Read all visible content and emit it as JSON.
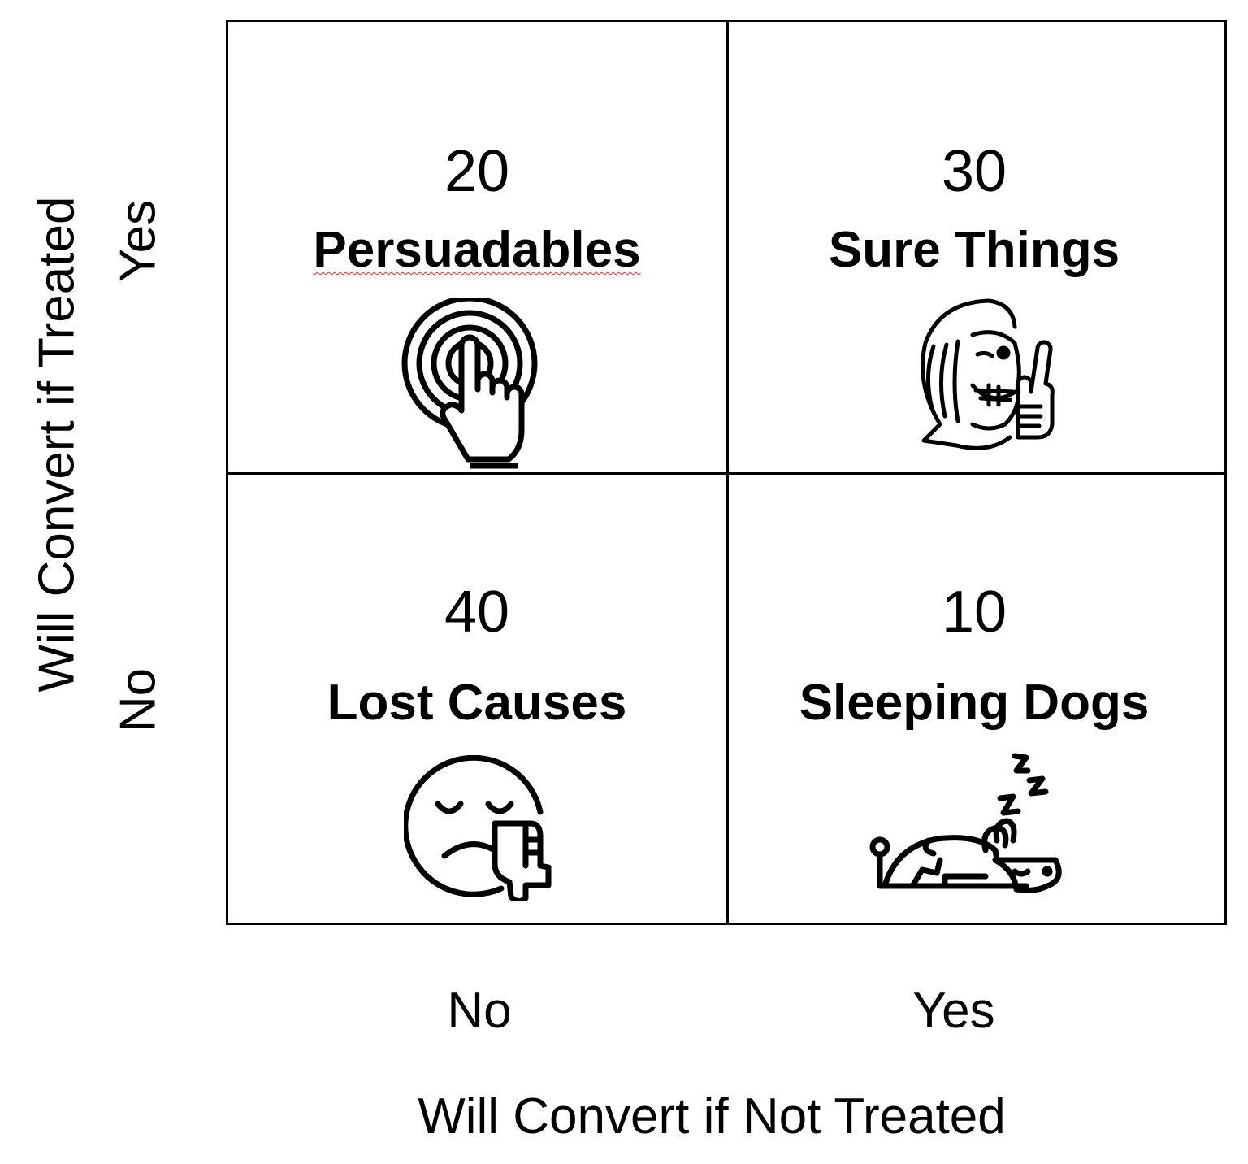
{
  "axes": {
    "y_title": "Will Convert if Treated",
    "x_title": "Will Convert if Not Treated",
    "y_yes": "Yes",
    "y_no": "No",
    "x_no": "No",
    "x_yes": "Yes"
  },
  "cells": {
    "persuadables": {
      "count": "20",
      "label": "Persuadables",
      "icon": "touch-target-icon"
    },
    "sure_things": {
      "count": "30",
      "label": "Sure Things",
      "icon": "thumbs-up-winking-face-icon"
    },
    "lost_causes": {
      "count": "40",
      "label": "Lost Causes",
      "icon": "sad-face-thumbs-down-icon"
    },
    "sleeping_dogs": {
      "count": "10",
      "label": "Sleeping Dogs",
      "icon": "sleeping-dog-icon"
    }
  }
}
